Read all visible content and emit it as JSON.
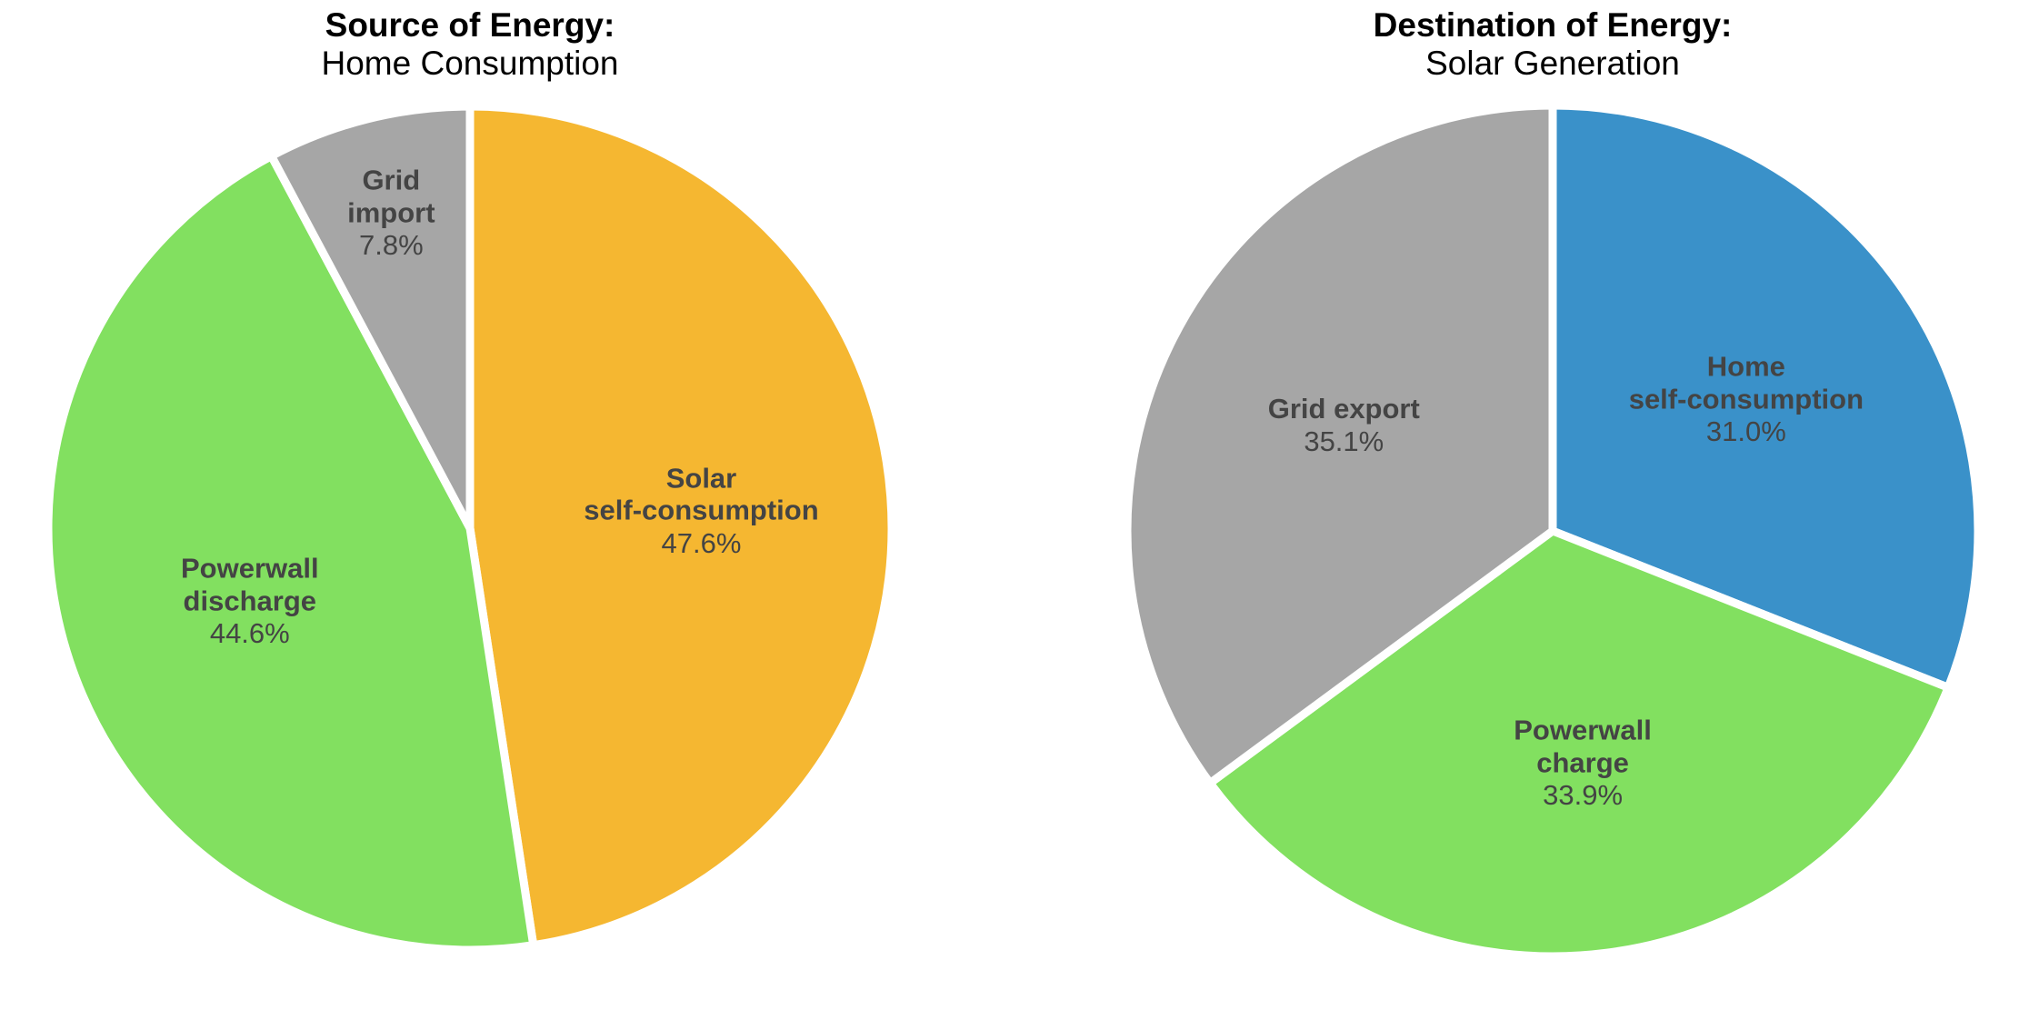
{
  "chart_data": [
    {
      "type": "pie",
      "title": "Source of Energy:",
      "subtitle": "Home Consumption",
      "categories": [
        "Solar\nself-consumption",
        "Powerwall\ndischarge",
        "Grid\nimport"
      ],
      "values": [
        47.6,
        44.6,
        7.8
      ],
      "value_labels": [
        "47.6%",
        "44.6%",
        "7.8%"
      ],
      "colors": [
        "#f5b731",
        "#82e060",
        "#a6a6a6"
      ]
    },
    {
      "type": "pie",
      "title": "Destination of Energy:",
      "subtitle": "Solar Generation",
      "categories": [
        "Home\nself-consumption",
        "Powerwall\ncharge",
        "Grid export"
      ],
      "values": [
        31.0,
        33.9,
        35.1
      ],
      "value_labels": [
        "31.0%",
        "33.9%",
        "35.1%"
      ],
      "colors": [
        "#3a91c9",
        "#82e060",
        "#a6a6a6"
      ]
    }
  ]
}
